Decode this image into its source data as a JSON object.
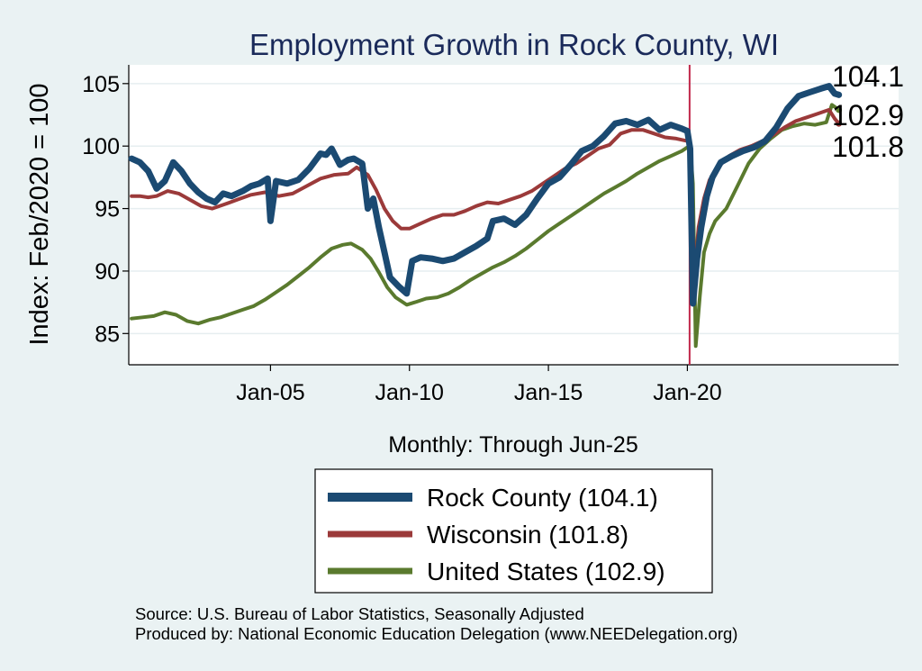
{
  "chart_data": {
    "type": "line",
    "title": "Employment Growth in Rock  County, WI",
    "ylabel": "Index: Feb/2020 = 100",
    "xlabel": "Monthly: Through Jun-25",
    "ylim": [
      82.5,
      106.5
    ],
    "xlim": [
      1999.9,
      2027.6
    ],
    "yticks": [
      85,
      90,
      95,
      100,
      105
    ],
    "xticks": [
      {
        "x": 2005.0,
        "label": "Jan-05"
      },
      {
        "x": 2010.0,
        "label": "Jan-10"
      },
      {
        "x": 2015.0,
        "label": "Jan-15"
      },
      {
        "x": 2020.0,
        "label": "Jan-20"
      }
    ],
    "reference_line_x": 2020.08,
    "grid": true,
    "legend_position": "bottom",
    "series": [
      {
        "name": "Rock  County (104.1)",
        "color": "#1b4a72",
        "end_value": "104.1",
        "points": [
          [
            2000.0,
            99.0
          ],
          [
            2000.3,
            98.7
          ],
          [
            2000.6,
            98.0
          ],
          [
            2000.9,
            96.6
          ],
          [
            2001.2,
            97.2
          ],
          [
            2001.5,
            98.7
          ],
          [
            2001.8,
            98.0
          ],
          [
            2002.1,
            97.0
          ],
          [
            2002.4,
            96.3
          ],
          [
            2002.7,
            95.8
          ],
          [
            2003.0,
            95.5
          ],
          [
            2003.3,
            96.2
          ],
          [
            2003.6,
            96.0
          ],
          [
            2004.0,
            96.4
          ],
          [
            2004.3,
            96.8
          ],
          [
            2004.6,
            97.0
          ],
          [
            2004.9,
            97.4
          ],
          [
            2005.0,
            94.0
          ],
          [
            2005.2,
            97.2
          ],
          [
            2005.6,
            97.0
          ],
          [
            2006.0,
            97.3
          ],
          [
            2006.4,
            98.2
          ],
          [
            2006.8,
            99.4
          ],
          [
            2007.0,
            99.3
          ],
          [
            2007.2,
            99.8
          ],
          [
            2007.5,
            98.5
          ],
          [
            2007.8,
            98.9
          ],
          [
            2008.0,
            99.0
          ],
          [
            2008.3,
            98.6
          ],
          [
            2008.5,
            95.0
          ],
          [
            2008.7,
            95.8
          ],
          [
            2008.9,
            93.5
          ],
          [
            2009.1,
            91.5
          ],
          [
            2009.3,
            89.5
          ],
          [
            2009.6,
            88.8
          ],
          [
            2009.9,
            88.2
          ],
          [
            2010.1,
            90.8
          ],
          [
            2010.4,
            91.1
          ],
          [
            2010.8,
            91.0
          ],
          [
            2011.2,
            90.8
          ],
          [
            2011.6,
            91.0
          ],
          [
            2012.0,
            91.5
          ],
          [
            2012.4,
            92.0
          ],
          [
            2012.8,
            92.6
          ],
          [
            2013.0,
            94.0
          ],
          [
            2013.4,
            94.2
          ],
          [
            2013.8,
            93.7
          ],
          [
            2014.2,
            94.5
          ],
          [
            2014.6,
            95.8
          ],
          [
            2015.0,
            97.0
          ],
          [
            2015.4,
            97.5
          ],
          [
            2015.8,
            98.5
          ],
          [
            2016.2,
            99.6
          ],
          [
            2016.6,
            100.0
          ],
          [
            2017.0,
            100.8
          ],
          [
            2017.4,
            101.8
          ],
          [
            2017.8,
            102.0
          ],
          [
            2018.2,
            101.7
          ],
          [
            2018.6,
            102.1
          ],
          [
            2019.0,
            101.3
          ],
          [
            2019.4,
            101.7
          ],
          [
            2019.8,
            101.4
          ],
          [
            2020.0,
            101.2
          ],
          [
            2020.1,
            99.8
          ],
          [
            2020.2,
            87.4
          ],
          [
            2020.35,
            91.0
          ],
          [
            2020.5,
            93.5
          ],
          [
            2020.7,
            96.0
          ],
          [
            2020.9,
            97.5
          ],
          [
            2021.2,
            98.7
          ],
          [
            2021.6,
            99.2
          ],
          [
            2022.0,
            99.6
          ],
          [
            2022.4,
            99.9
          ],
          [
            2022.8,
            100.4
          ],
          [
            2023.2,
            101.5
          ],
          [
            2023.6,
            103.0
          ],
          [
            2024.0,
            104.0
          ],
          [
            2024.4,
            104.3
          ],
          [
            2024.8,
            104.6
          ],
          [
            2025.1,
            104.8
          ],
          [
            2025.3,
            104.2
          ],
          [
            2025.45,
            104.1
          ]
        ]
      },
      {
        "name": "Wisconsin (101.8)",
        "color": "#9b3a3a",
        "end_value": "101.8",
        "points": [
          [
            2000.0,
            96.0
          ],
          [
            2000.3,
            96.0
          ],
          [
            2000.6,
            95.9
          ],
          [
            2000.9,
            96.0
          ],
          [
            2001.3,
            96.4
          ],
          [
            2001.7,
            96.2
          ],
          [
            2002.1,
            95.7
          ],
          [
            2002.5,
            95.2
          ],
          [
            2002.9,
            95.0
          ],
          [
            2003.3,
            95.3
          ],
          [
            2003.8,
            95.7
          ],
          [
            2004.3,
            96.1
          ],
          [
            2004.8,
            96.3
          ],
          [
            2005.3,
            96.0
          ],
          [
            2005.8,
            96.2
          ],
          [
            2006.3,
            96.8
          ],
          [
            2006.8,
            97.4
          ],
          [
            2007.3,
            97.7
          ],
          [
            2007.8,
            97.8
          ],
          [
            2008.1,
            98.3
          ],
          [
            2008.5,
            97.7
          ],
          [
            2008.8,
            96.5
          ],
          [
            2009.1,
            95.0
          ],
          [
            2009.4,
            94.0
          ],
          [
            2009.7,
            93.4
          ],
          [
            2010.0,
            93.4
          ],
          [
            2010.4,
            93.8
          ],
          [
            2010.8,
            94.2
          ],
          [
            2011.2,
            94.5
          ],
          [
            2011.6,
            94.5
          ],
          [
            2012.0,
            94.8
          ],
          [
            2012.4,
            95.2
          ],
          [
            2012.8,
            95.5
          ],
          [
            2013.2,
            95.4
          ],
          [
            2013.6,
            95.7
          ],
          [
            2014.0,
            96.0
          ],
          [
            2014.4,
            96.4
          ],
          [
            2014.8,
            97.0
          ],
          [
            2015.2,
            97.6
          ],
          [
            2015.6,
            98.2
          ],
          [
            2016.0,
            98.6
          ],
          [
            2016.4,
            99.2
          ],
          [
            2016.8,
            99.8
          ],
          [
            2017.2,
            100.1
          ],
          [
            2017.6,
            101.0
          ],
          [
            2018.0,
            101.3
          ],
          [
            2018.4,
            101.3
          ],
          [
            2018.8,
            101.0
          ],
          [
            2019.2,
            100.7
          ],
          [
            2019.6,
            100.6
          ],
          [
            2020.0,
            100.4
          ],
          [
            2020.1,
            100.3
          ],
          [
            2020.25,
            89.6
          ],
          [
            2020.4,
            93.5
          ],
          [
            2020.6,
            95.8
          ],
          [
            2020.8,
            97.3
          ],
          [
            2021.1,
            98.3
          ],
          [
            2021.5,
            99.2
          ],
          [
            2021.9,
            99.7
          ],
          [
            2022.3,
            100.0
          ],
          [
            2022.7,
            100.4
          ],
          [
            2023.1,
            100.9
          ],
          [
            2023.5,
            101.5
          ],
          [
            2023.9,
            102.0
          ],
          [
            2024.3,
            102.3
          ],
          [
            2024.7,
            102.6
          ],
          [
            2025.1,
            102.9
          ],
          [
            2025.3,
            102.2
          ],
          [
            2025.45,
            101.8
          ]
        ]
      },
      {
        "name": "United States (102.9)",
        "color": "#5a7a2e",
        "end_value": "102.9",
        "points": [
          [
            2000.0,
            86.2
          ],
          [
            2000.4,
            86.3
          ],
          [
            2000.8,
            86.4
          ],
          [
            2001.2,
            86.7
          ],
          [
            2001.6,
            86.5
          ],
          [
            2002.0,
            86.0
          ],
          [
            2002.4,
            85.8
          ],
          [
            2002.8,
            86.1
          ],
          [
            2003.2,
            86.3
          ],
          [
            2003.6,
            86.6
          ],
          [
            2004.0,
            86.9
          ],
          [
            2004.4,
            87.2
          ],
          [
            2004.8,
            87.7
          ],
          [
            2005.2,
            88.3
          ],
          [
            2005.6,
            88.9
          ],
          [
            2006.0,
            89.6
          ],
          [
            2006.4,
            90.3
          ],
          [
            2006.8,
            91.1
          ],
          [
            2007.2,
            91.8
          ],
          [
            2007.6,
            92.1
          ],
          [
            2007.9,
            92.2
          ],
          [
            2008.3,
            91.7
          ],
          [
            2008.6,
            91.0
          ],
          [
            2008.9,
            89.9
          ],
          [
            2009.2,
            88.7
          ],
          [
            2009.5,
            87.9
          ],
          [
            2009.9,
            87.3
          ],
          [
            2010.2,
            87.5
          ],
          [
            2010.6,
            87.8
          ],
          [
            2011.0,
            87.9
          ],
          [
            2011.4,
            88.2
          ],
          [
            2011.8,
            88.7
          ],
          [
            2012.2,
            89.3
          ],
          [
            2012.6,
            89.8
          ],
          [
            2013.0,
            90.3
          ],
          [
            2013.4,
            90.7
          ],
          [
            2013.8,
            91.2
          ],
          [
            2014.2,
            91.8
          ],
          [
            2014.6,
            92.5
          ],
          [
            2015.0,
            93.2
          ],
          [
            2015.4,
            93.8
          ],
          [
            2015.8,
            94.4
          ],
          [
            2016.2,
            95.0
          ],
          [
            2016.6,
            95.6
          ],
          [
            2017.0,
            96.2
          ],
          [
            2017.4,
            96.7
          ],
          [
            2017.8,
            97.2
          ],
          [
            2018.2,
            97.8
          ],
          [
            2018.6,
            98.3
          ],
          [
            2019.0,
            98.8
          ],
          [
            2019.4,
            99.2
          ],
          [
            2019.8,
            99.6
          ],
          [
            2020.0,
            99.9
          ],
          [
            2020.1,
            100.0
          ],
          [
            2020.2,
            97.0
          ],
          [
            2020.3,
            84.0
          ],
          [
            2020.45,
            88.0
          ],
          [
            2020.6,
            91.5
          ],
          [
            2020.8,
            93.0
          ],
          [
            2021.0,
            94.0
          ],
          [
            2021.4,
            95.0
          ],
          [
            2021.8,
            96.8
          ],
          [
            2022.2,
            98.6
          ],
          [
            2022.6,
            99.8
          ],
          [
            2023.0,
            100.6
          ],
          [
            2023.4,
            101.3
          ],
          [
            2023.8,
            101.6
          ],
          [
            2024.2,
            101.8
          ],
          [
            2024.6,
            101.7
          ],
          [
            2025.0,
            101.9
          ],
          [
            2025.2,
            103.3
          ],
          [
            2025.45,
            102.9
          ]
        ]
      }
    ]
  },
  "source_line": "Source: U.S. Bureau of Labor Statistics, Seasonally Adjusted",
  "produced_line": "Produced by: National Economic Education Delegation (www.NEEDelegation.org)"
}
